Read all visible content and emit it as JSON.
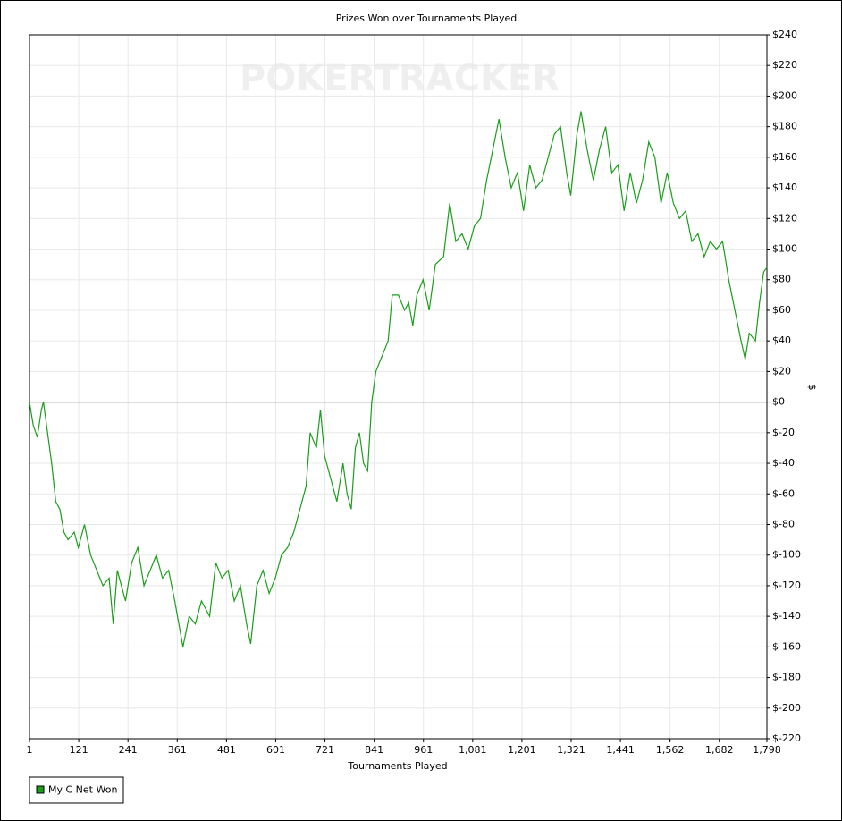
{
  "chart_data": {
    "type": "line",
    "title": "Prizes Won over Tournaments Played",
    "watermark": "POKERTRACKER",
    "x_label": "Tournaments Played",
    "y_label": "$",
    "grid": true,
    "legend": "bottom-left",
    "xlim": [
      1,
      1798
    ],
    "ylim": [
      -220,
      240
    ],
    "xticks": [
      1,
      121,
      241,
      361,
      481,
      601,
      721,
      841,
      961,
      {
        "value": 1081,
        "label": "1,081"
      },
      {
        "value": 1201,
        "label": "1,201"
      },
      {
        "value": 1321,
        "label": "1,321"
      },
      {
        "value": 1441,
        "label": "1,441"
      },
      {
        "value": 1562,
        "label": "1,562"
      },
      {
        "value": 1682,
        "label": "1,682"
      },
      {
        "value": 1798,
        "label": "1,798"
      }
    ],
    "yticks": [
      {
        "value": -220,
        "label": "$-220"
      },
      {
        "value": -200,
        "label": "$-200"
      },
      {
        "value": -180,
        "label": "$-180"
      },
      {
        "value": -160,
        "label": "$-160"
      },
      {
        "value": -140,
        "label": "$-140"
      },
      {
        "value": -120,
        "label": "$-120"
      },
      {
        "value": -100,
        "label": "$-100"
      },
      {
        "value": -80,
        "label": "$-80"
      },
      {
        "value": -60,
        "label": "$-60"
      },
      {
        "value": -40,
        "label": "$-40"
      },
      {
        "value": -20,
        "label": "$-20"
      },
      {
        "value": 0,
        "label": "$0"
      },
      {
        "value": 20,
        "label": "$20"
      },
      {
        "value": 40,
        "label": "$40"
      },
      {
        "value": 60,
        "label": "$60"
      },
      {
        "value": 80,
        "label": "$80"
      },
      {
        "value": 100,
        "label": "$100"
      },
      {
        "value": 120,
        "label": "$120"
      },
      {
        "value": 140,
        "label": "$140"
      },
      {
        "value": 160,
        "label": "$160"
      },
      {
        "value": 180,
        "label": "$180"
      },
      {
        "value": 200,
        "label": "$200"
      },
      {
        "value": 220,
        "label": "$220"
      },
      {
        "value": 240,
        "label": "$240"
      }
    ],
    "x": [
      1,
      10,
      20,
      30,
      35,
      45,
      55,
      65,
      75,
      85,
      95,
      110,
      120,
      135,
      150,
      165,
      180,
      195,
      205,
      215,
      225,
      235,
      250,
      265,
      280,
      295,
      310,
      325,
      340,
      355,
      365,
      375,
      390,
      405,
      420,
      440,
      455,
      470,
      485,
      500,
      515,
      530,
      540,
      555,
      570,
      585,
      600,
      615,
      630,
      645,
      660,
      675,
      685,
      700,
      710,
      720,
      735,
      750,
      765,
      775,
      785,
      795,
      805,
      815,
      825,
      835,
      845,
      860,
      875,
      885,
      900,
      915,
      925,
      935,
      945,
      960,
      975,
      990,
      1010,
      1025,
      1040,
      1055,
      1070,
      1085,
      1100,
      1115,
      1130,
      1145,
      1160,
      1175,
      1190,
      1205,
      1220,
      1235,
      1250,
      1265,
      1280,
      1295,
      1310,
      1320,
      1335,
      1345,
      1360,
      1375,
      1390,
      1405,
      1420,
      1435,
      1450,
      1465,
      1480,
      1495,
      1510,
      1525,
      1540,
      1555,
      1570,
      1585,
      1600,
      1615,
      1630,
      1645,
      1660,
      1675,
      1690,
      1705,
      1720,
      1735,
      1745,
      1755,
      1770,
      1780,
      1790,
      1798
    ],
    "series": [
      {
        "name": "My C Net Won",
        "color": "#1a9e1a",
        "values": [
          0,
          -15,
          -23,
          -5,
          0,
          -20,
          -40,
          -65,
          -70,
          -85,
          -90,
          -85,
          -95,
          -80,
          -100,
          -110,
          -120,
          -115,
          -145,
          -110,
          -120,
          -130,
          -105,
          -95,
          -120,
          -110,
          -100,
          -115,
          -110,
          -130,
          -145,
          -160,
          -140,
          -145,
          -130,
          -140,
          -105,
          -115,
          -110,
          -130,
          -120,
          -145,
          -158,
          -120,
          -110,
          -125,
          -115,
          -100,
          -95,
          -85,
          -70,
          -55,
          -20,
          -30,
          -5,
          -35,
          -50,
          -65,
          -40,
          -60,
          -70,
          -30,
          -20,
          -40,
          -45,
          0,
          20,
          30,
          40,
          70,
          70,
          60,
          65,
          50,
          70,
          80,
          60,
          90,
          95,
          130,
          105,
          110,
          100,
          115,
          120,
          145,
          165,
          185,
          160,
          140,
          150,
          125,
          155,
          140,
          145,
          160,
          175,
          180,
          150,
          135,
          175,
          190,
          165,
          145,
          165,
          180,
          150,
          155,
          125,
          150,
          130,
          145,
          170,
          160,
          130,
          150,
          130,
          120,
          125,
          105,
          110,
          95,
          105,
          100,
          105,
          80,
          60,
          40,
          28,
          45,
          40,
          65,
          85,
          88
        ]
      }
    ]
  }
}
